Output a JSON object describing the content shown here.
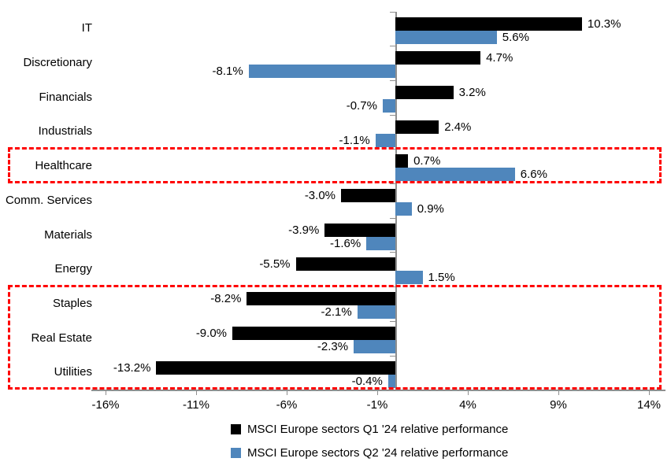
{
  "chart_data": {
    "type": "bar",
    "orientation": "horizontal",
    "title": "",
    "xlabel": "",
    "ylabel": "",
    "grid": false,
    "legend_position": "bottom",
    "categories": [
      "IT",
      "Discretionary",
      "Financials",
      "Industrials",
      "Healthcare",
      "Comm. Services",
      "Materials",
      "Energy",
      "Staples",
      "Real Estate",
      "Utilities"
    ],
    "series": [
      {
        "name": "MSCI Europe sectors Q1 '24 relative performance",
        "color": "#000000",
        "values": [
          10.3,
          4.7,
          3.2,
          2.4,
          0.7,
          -3.0,
          -3.9,
          -5.5,
          -8.2,
          -9.0,
          -13.2
        ],
        "labels": [
          "10.3%",
          "4.7%",
          "3.2%",
          "2.4%",
          "0.7%",
          "-3.0%",
          "-3.9%",
          "-5.5%",
          "-8.2%",
          "-9.0%",
          "-13.2%"
        ]
      },
      {
        "name": "MSCI Europe sectors Q2 '24 relative performance",
        "color": "#4f86bc",
        "values": [
          5.6,
          -8.1,
          -0.7,
          -1.1,
          6.6,
          0.9,
          -1.6,
          1.5,
          -2.1,
          -2.3,
          -0.4
        ],
        "labels": [
          "5.6%",
          "-8.1%",
          "-0.7%",
          "-1.1%",
          "6.6%",
          "0.9%",
          "-1.6%",
          "1.5%",
          "-2.1%",
          "-2.3%",
          "-0.4%"
        ]
      }
    ],
    "x_axis": {
      "tick_labels": [
        "-16%",
        "-11%",
        "-6%",
        "-1%",
        "4%",
        "9%",
        "14%"
      ],
      "tick_values": [
        -16,
        -11,
        -6,
        -1,
        4,
        9,
        14
      ],
      "range": [
        -16.8,
        14.9
      ]
    },
    "highlight_boxes": [
      {
        "name": "healthcare-highlight",
        "rows": [
          "Healthcare"
        ],
        "color": "#ff0000"
      },
      {
        "name": "defensives-highlight",
        "rows": [
          "Staples",
          "Real Estate",
          "Utilities"
        ],
        "color": "#ff0000"
      }
    ]
  }
}
